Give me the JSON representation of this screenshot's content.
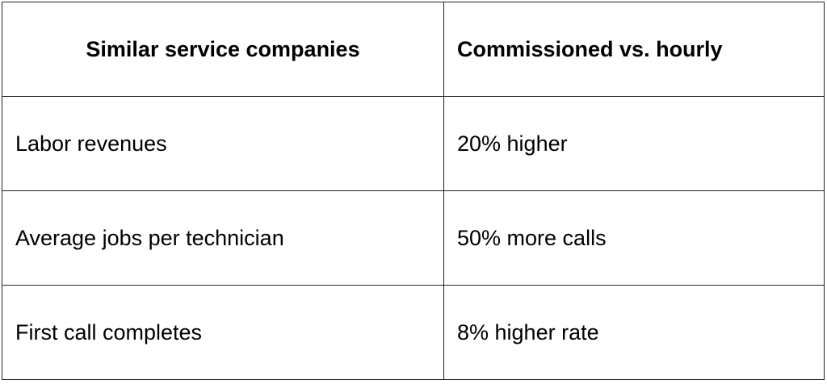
{
  "table": {
    "header": [
      "Similar service companies",
      "Commissioned vs. hourly"
    ],
    "rows": [
      [
        "Labor revenues",
        "20% higher"
      ],
      [
        "Average jobs per technician",
        "50% more calls"
      ],
      [
        "First call completes",
        "8% higher rate"
      ]
    ]
  }
}
